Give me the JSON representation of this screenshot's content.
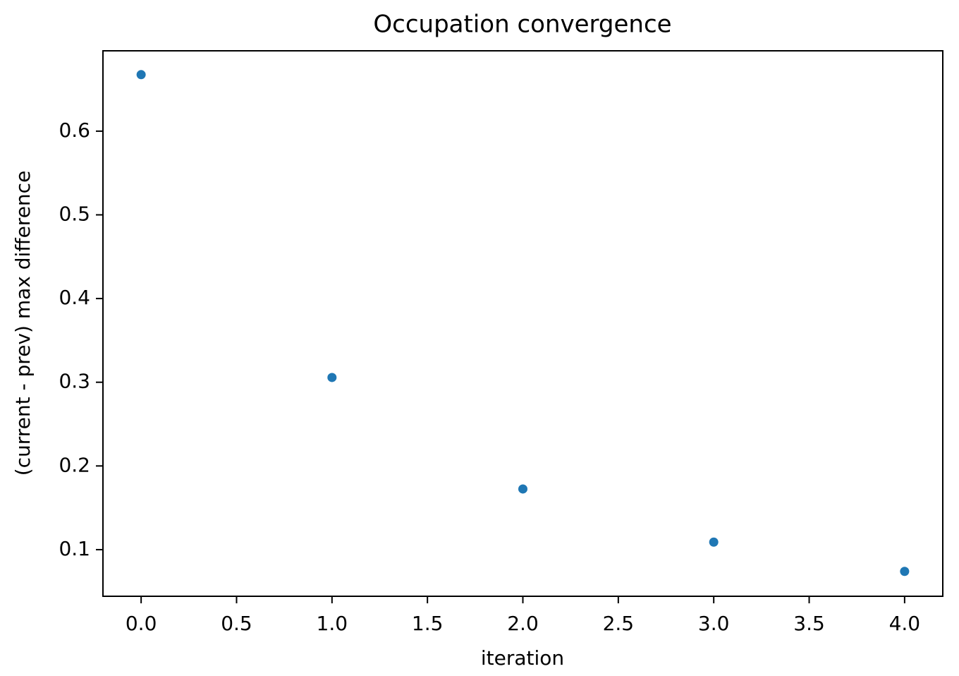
{
  "chart_data": {
    "type": "scatter",
    "title": "Occupation convergence",
    "xlabel": "iteration",
    "ylabel": "(current - prev) max difference",
    "x": [
      0,
      1,
      2,
      3,
      4
    ],
    "series": [
      {
        "color": "#1f77b4",
        "values": [
          0.6675,
          0.3057,
          0.1725,
          0.109,
          0.074
        ]
      }
    ],
    "xlim": [
      -0.2,
      4.2
    ],
    "xticks": [
      {
        "value": 0,
        "label": "0.0"
      },
      0.5,
      {
        "value": 1,
        "label": "1.0"
      },
      1.5,
      {
        "value": 2,
        "label": "2.0"
      },
      2.5,
      {
        "value": 3,
        "label": "3.0"
      },
      3.5,
      {
        "value": 4,
        "label": "4.0"
      }
    ],
    "ylim": [
      0.0443,
      0.696
    ],
    "yticks": [
      0.1,
      0.2,
      0.3,
      0.4,
      0.5,
      0.6
    ],
    "grid": false
  }
}
